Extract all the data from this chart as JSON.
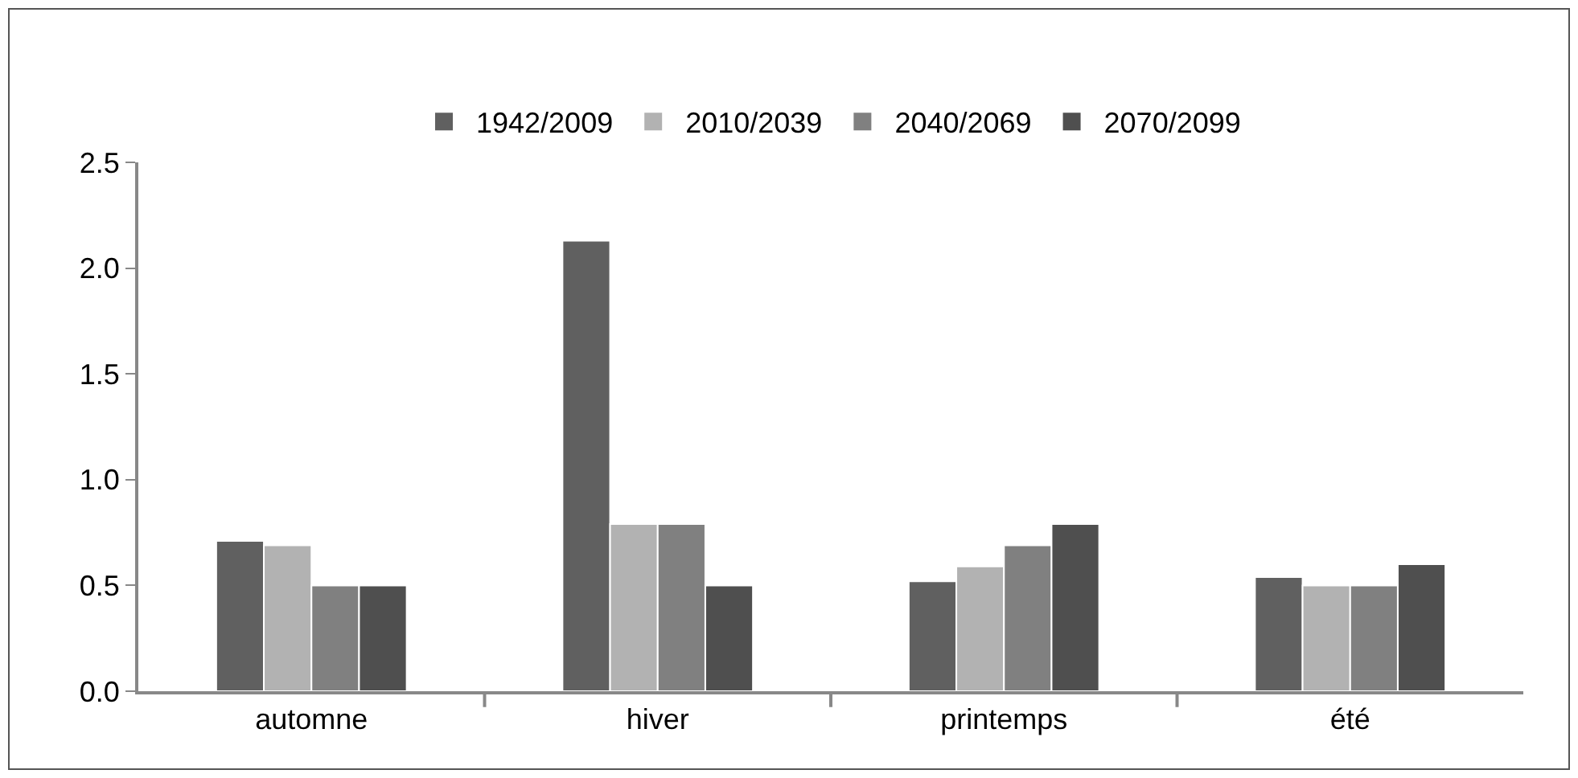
{
  "chart_data": {
    "type": "bar",
    "categories": [
      "automne",
      "hiver",
      "printemps",
      "été"
    ],
    "series": [
      {
        "name": "1942/2009",
        "color": "#606060",
        "values": [
          0.71,
          2.13,
          0.52,
          0.54
        ]
      },
      {
        "name": "2010/2039",
        "color": "#b2b2b2",
        "values": [
          0.69,
          0.79,
          0.59,
          0.5
        ]
      },
      {
        "name": "2040/2069",
        "color": "#808080",
        "values": [
          0.5,
          0.79,
          0.69,
          0.5
        ]
      },
      {
        "name": "2070/2099",
        "color": "#4f4f4f",
        "values": [
          0.5,
          0.5,
          0.79,
          0.6
        ]
      }
    ],
    "ylim": [
      0,
      2.5
    ],
    "yticks": [
      {
        "value": 0,
        "label": "0.0"
      },
      {
        "value": 0.5,
        "label": "0.5"
      },
      {
        "value": 1,
        "label": "1.0"
      },
      {
        "value": 1.5,
        "label": "1.5"
      },
      {
        "value": 2,
        "label": "2.0"
      },
      {
        "value": 2.5,
        "label": "2.5"
      }
    ],
    "grid": false,
    "legend": "top"
  }
}
